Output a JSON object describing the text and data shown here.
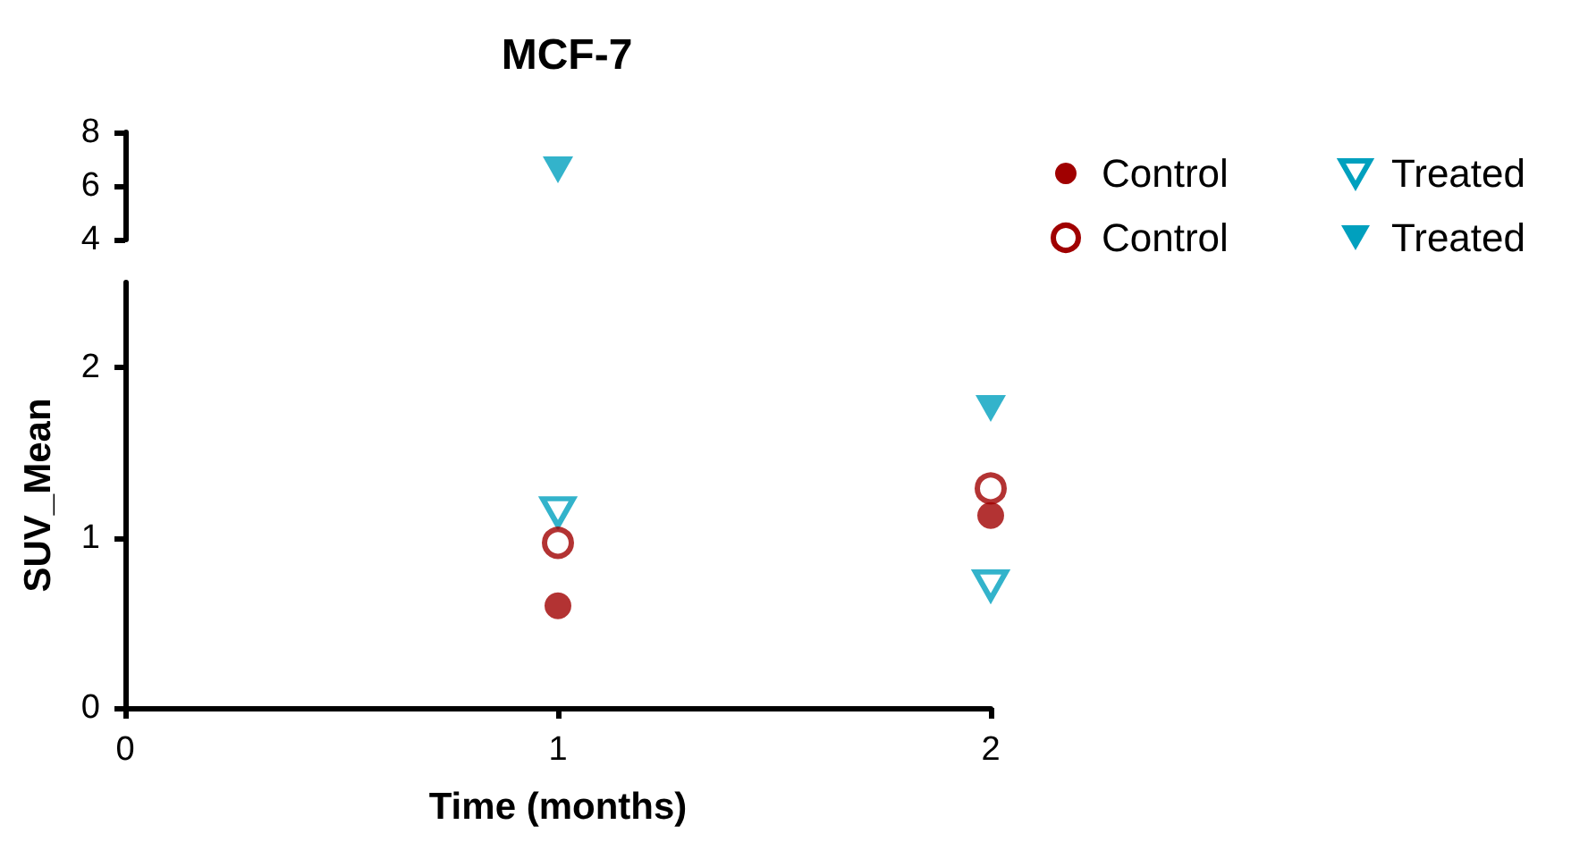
{
  "chart_data": [
    {
      "type": "scatter",
      "title": "MCF-7",
      "xlim": [
        0,
        2
      ],
      "ylim": [
        4,
        8
      ],
      "yticks": [
        4,
        6,
        8
      ],
      "tick_labels": "y",
      "series": [
        {
          "color": "#00a0be",
          "marker": "triangle_down",
          "x": [
            1
          ],
          "values": [
            6.6
          ]
        }
      ]
    },
    {
      "type": "scatter",
      "xlabel": "Time (months)",
      "ylabel": "SUV_Mean",
      "xlim": [
        0,
        2
      ],
      "xticks": [
        0,
        1,
        2
      ],
      "ylim": [
        0,
        2.5
      ],
      "yticks": [
        0,
        1,
        2
      ],
      "x": [
        1,
        2
      ],
      "legend": "right",
      "series": [
        {
          "name": "Control",
          "color": "#a00000",
          "marker": "circle",
          "values": [
            0.6,
            1.13
          ]
        },
        {
          "name": "Treated",
          "color": "#00a0be",
          "marker": "triangle_down_open",
          "values": [
            1.15,
            0.72
          ]
        },
        {
          "name": "Control",
          "color": "#a00000",
          "marker": "circle_open",
          "values": [
            0.97,
            1.29
          ]
        },
        {
          "name": "Treated",
          "color": "#00a0be",
          "marker": "triangle_down",
          "values": [
            null,
            1.76
          ]
        }
      ]
    }
  ]
}
